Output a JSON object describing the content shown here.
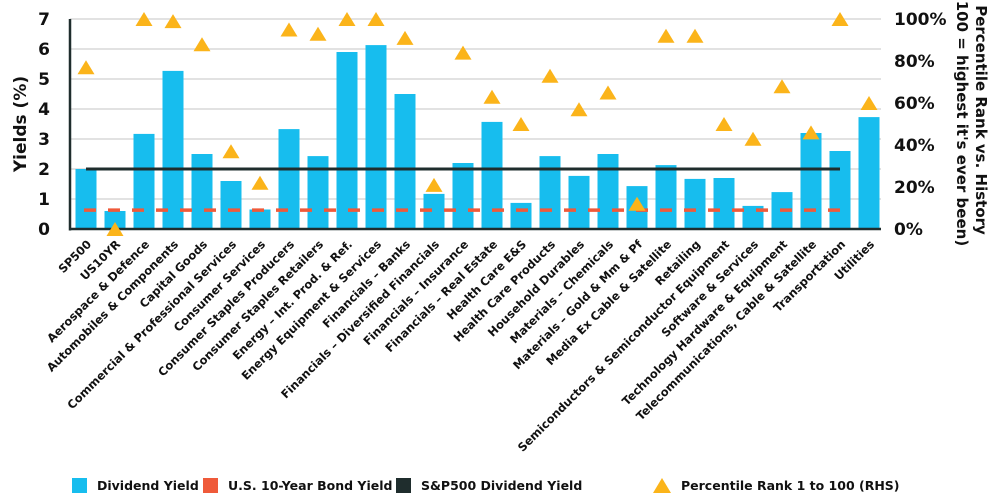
{
  "chart_data": {
    "type": "bar",
    "title": "",
    "ylabel": "Yields (%)",
    "y2label_line1": "Percentile Rank vs. History",
    "y2label_line2": "(100 = highest it's ever been)",
    "xlabel": "",
    "ylim": [
      0,
      7
    ],
    "y_ticks": [
      "0",
      "1",
      "2",
      "3",
      "4",
      "5",
      "6",
      "7"
    ],
    "y2lim": [
      0,
      100
    ],
    "y2_ticks": [
      "0%",
      "20%",
      "40%",
      "60%",
      "80%",
      "100%"
    ],
    "grid": true,
    "legend_position": "bottom",
    "categories": [
      "SP500",
      "US10YR",
      "Aerospace & Defence",
      "Automobiles & Components",
      "Capital Goods",
      "Commercial & Professional Services",
      "Consumer Services",
      "Consumer Staples Producers",
      "Consumer Staples Retailers",
      "Energy – Int. Prod. & Ref.",
      "Energy Equipment & Services",
      "Financials – Banks",
      "Financials – Diversified Financials",
      "Financials – Insurance",
      "Financials – Real Estate",
      "Health Care E&S",
      "Health Care Products",
      "Household Durables",
      "Materials – Chemicals",
      "Materials – Gold & Mm & Pf",
      "Media Ex Cable & Satellite",
      "Retailing",
      "Semiconductors & Semiconductor Equipment",
      "Software & Services",
      "Technology Hardware & Equipment",
      "Telecommunications, Cable & Satellite",
      "Transportation",
      "Utilities"
    ],
    "series": [
      {
        "name": "Dividend Yield",
        "type": "bar",
        "axis": "left",
        "color": "#17bdee",
        "values": [
          2.0,
          0.6,
          3.17,
          5.27,
          2.5,
          1.6,
          0.65,
          3.33,
          2.43,
          5.9,
          6.13,
          4.5,
          1.17,
          2.2,
          3.57,
          0.87,
          2.43,
          1.77,
          2.5,
          1.43,
          2.13,
          1.67,
          1.7,
          0.77,
          1.23,
          3.2,
          2.6,
          3.73
        ]
      },
      {
        "name": "U.S. 10-Year Bond Yield",
        "type": "line-dashed",
        "axis": "left",
        "color": "#ef5a3a",
        "value": 0.63
      },
      {
        "name": "S&P500 Dividend Yield",
        "type": "line",
        "axis": "left",
        "color": "#1f2d2d",
        "value": 2.0
      },
      {
        "name": "Percentile Rank 1 to 100 (RHS)",
        "type": "scatter-triangle",
        "axis": "right",
        "color": "#fbb41a",
        "values": [
          77,
          0,
          100,
          99,
          88,
          37,
          22,
          95,
          93,
          100,
          100,
          91,
          21,
          84,
          63,
          50,
          73,
          57,
          65,
          12,
          92,
          92,
          50,
          43,
          68,
          46,
          100,
          60
        ]
      }
    ]
  },
  "legend": {
    "items": [
      {
        "label": "Dividend Yield",
        "color": "#17bdee",
        "shape": "square"
      },
      {
        "label": "U.S. 10-Year Bond Yield",
        "color": "#ef5a3a",
        "shape": "square"
      },
      {
        "label": "S&P500 Dividend Yield",
        "color": "#1f2d2d",
        "shape": "square"
      },
      {
        "label": "Percentile Rank 1 to 100 (RHS)",
        "color": "#fbb41a",
        "shape": "triangle"
      }
    ]
  }
}
